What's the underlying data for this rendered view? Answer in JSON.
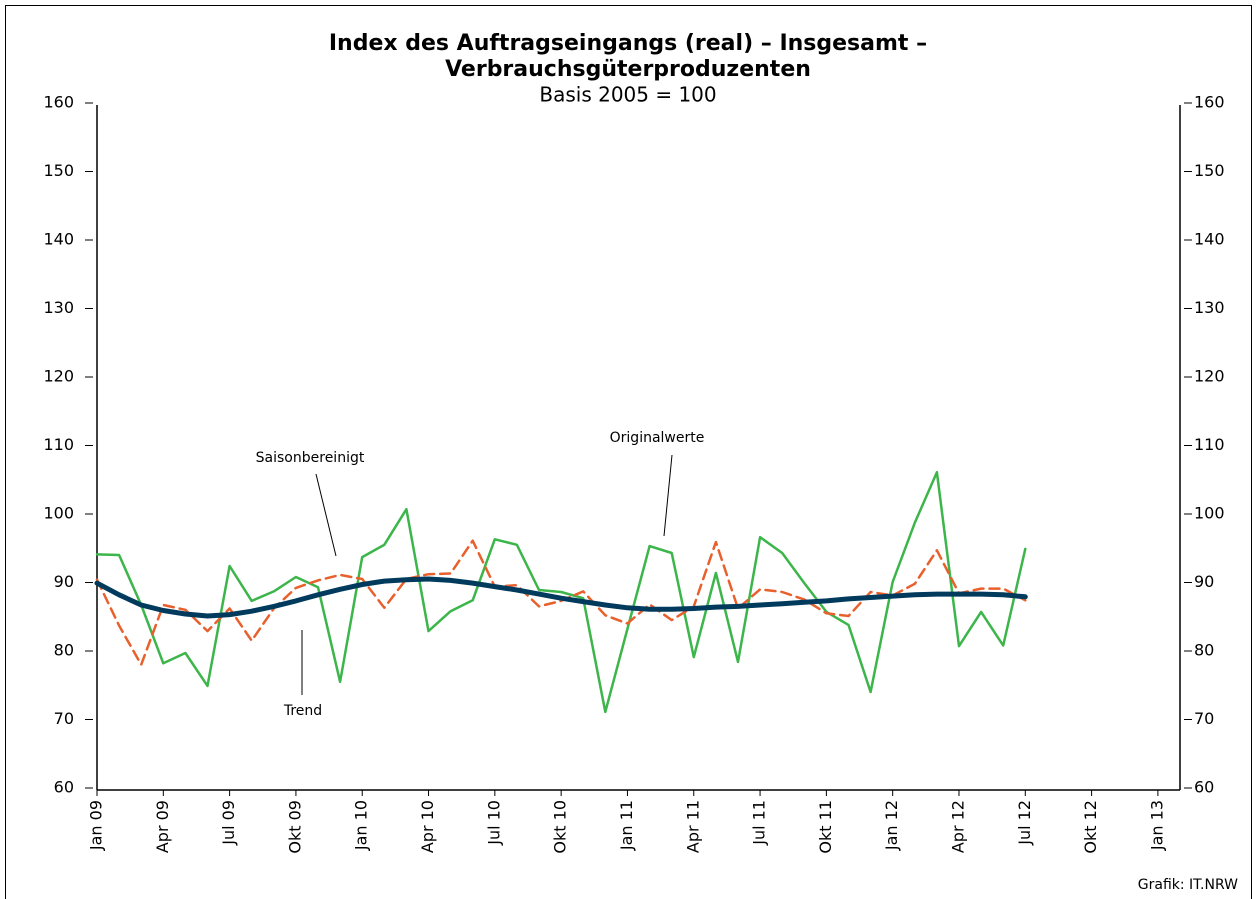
{
  "chart_data": {
    "type": "line",
    "title": "Index des Auftragseingangs (real) – Insgesamt –",
    "title_line2": "Verbrauchsgüterproduzenten",
    "subtitle": "Basis 2005 = 100",
    "source": "Grafik: IT.NRW",
    "categories": [
      "Jan 09",
      null,
      null,
      "Apr 09",
      null,
      null,
      "Jul 09",
      null,
      null,
      "Okt 09",
      null,
      null,
      "Jan 10",
      null,
      null,
      "Apr 10",
      null,
      null,
      "Jul 10",
      null,
      null,
      "Okt 10",
      null,
      null,
      "Jan 11",
      null,
      null,
      "Apr 11",
      null,
      null,
      "Jul 11",
      null,
      null,
      "Okt 11",
      null,
      null,
      "Jan 12",
      null,
      null,
      "Apr 12",
      null,
      null,
      "Jul 12",
      null,
      null,
      "Okt 12",
      null,
      null,
      "Jan 13",
      null
    ],
    "series": [
      {
        "name": "Originalwerte",
        "color": "#3cb54a",
        "dash": false,
        "width": 2.5,
        "values": [
          94.4,
          94.3,
          87,
          78.5,
          80,
          75.2,
          92.7,
          87.6,
          89,
          91.1,
          89.6,
          75.8,
          94,
          95.8,
          101,
          83.2,
          86.1,
          87.7,
          96.6,
          95.8,
          89.2,
          88.9,
          88,
          71.4,
          83.5,
          95.6,
          94.6,
          79.4,
          91.7,
          78.7,
          96.9,
          94.6,
          90.2,
          86,
          84.1,
          74.3,
          90.4,
          99,
          106.4,
          81,
          86,
          81.1,
          95.2,
          null,
          null,
          null,
          null,
          null,
          null,
          null
        ]
      },
      {
        "name": "Saisonbereinigt",
        "color": "#e8602c",
        "dash": true,
        "width": 2.5,
        "values": [
          90.7,
          84,
          78.3,
          87,
          86.3,
          83.2,
          86.5,
          81.8,
          86.5,
          89.5,
          90.6,
          91.4,
          90.8,
          86.6,
          90.8,
          91.5,
          91.6,
          96.4,
          89.7,
          89.9,
          86.8,
          87.6,
          89,
          85.5,
          84.3,
          87.1,
          84.8,
          86.8,
          96.2,
          86.5,
          89.3,
          88.9,
          87.8,
          85.8,
          85.4,
          88.9,
          88.4,
          90.1,
          95,
          88.7,
          89.4,
          89.4,
          87.7,
          null,
          null,
          null,
          null,
          null,
          null,
          null
        ]
      },
      {
        "name": "Trend",
        "color": "#003a5d",
        "dash": false,
        "width": 5,
        "values": [
          90.2,
          88.5,
          87,
          86.2,
          85.7,
          85.4,
          85.6,
          86.1,
          86.8,
          87.6,
          88.5,
          89.3,
          90,
          90.5,
          90.7,
          90.8,
          90.6,
          90.2,
          89.7,
          89.2,
          88.6,
          88,
          87.5,
          87,
          86.6,
          86.4,
          86.4,
          86.5,
          86.7,
          86.8,
          87,
          87.2,
          87.4,
          87.6,
          87.9,
          88.1,
          88.3,
          88.5,
          88.6,
          88.6,
          88.6,
          88.5,
          88.2,
          null,
          null,
          null,
          null,
          null,
          null,
          null
        ]
      }
    ],
    "ylim": [
      60,
      160
    ],
    "yticks": [
      60,
      70,
      80,
      90,
      100,
      110,
      120,
      130,
      140,
      150,
      160
    ],
    "y2lim": [
      60,
      160
    ],
    "y2ticks": [
      60,
      70,
      80,
      90,
      100,
      110,
      120,
      130,
      140,
      150,
      160
    ],
    "grid": false
  }
}
